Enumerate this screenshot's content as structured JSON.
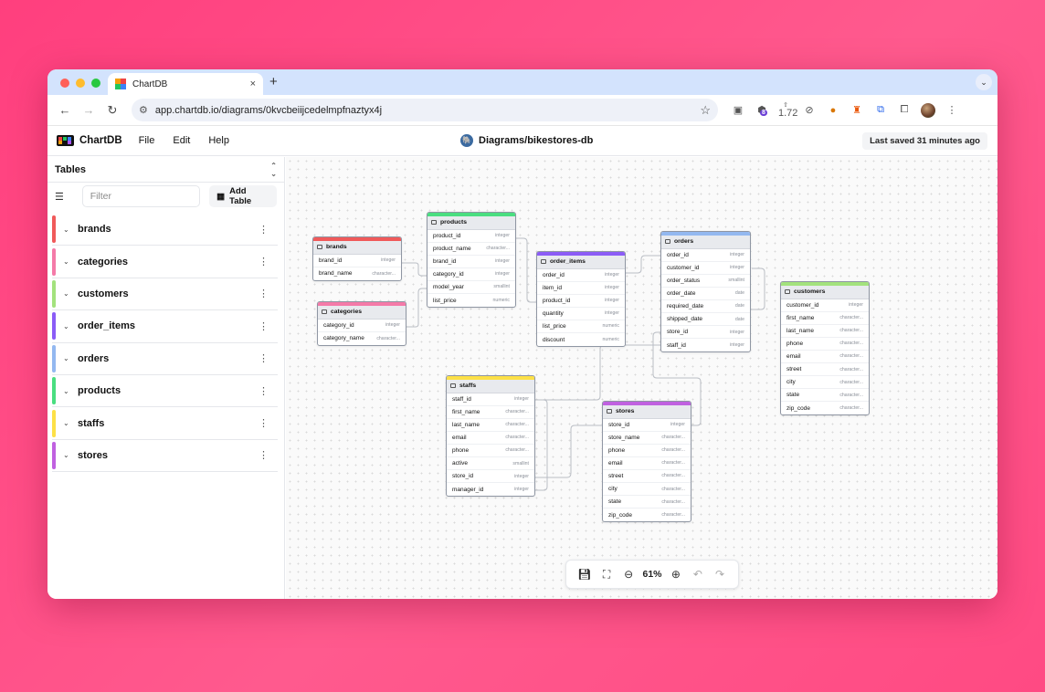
{
  "browser": {
    "tab_title": "ChartDB",
    "tab_close": "×",
    "new_tab": "+",
    "tab_menu": "⌄",
    "url": "app.chartdb.io/diagrams/0kvcbeiijcedelmpfnaztyx4j",
    "ext_badge_count": "8",
    "ext_value": "1.72"
  },
  "app": {
    "logo": "ChartDB",
    "menus": [
      "File",
      "Edit",
      "Help"
    ],
    "diagram_title": "Diagrams/bikestores-db",
    "last_saved": "Last saved 31 minutes ago"
  },
  "sidebar": {
    "title": "Tables",
    "filter_placeholder": "Filter",
    "add_table_label": "Add Table",
    "tables": [
      {
        "name": "brands",
        "color": "#f05a5a"
      },
      {
        "name": "categories",
        "color": "#f47aa8"
      },
      {
        "name": "customers",
        "color": "#a3e27d"
      },
      {
        "name": "order_items",
        "color": "#8b5cf6"
      },
      {
        "name": "orders",
        "color": "#93b8f0"
      },
      {
        "name": "products",
        "color": "#4ade80"
      },
      {
        "name": "staffs",
        "color": "#fde047"
      },
      {
        "name": "stores",
        "color": "#c061e0"
      }
    ]
  },
  "diagram": {
    "entities": {
      "brands": {
        "title": "brands",
        "color": "#f05a5a",
        "fields": [
          {
            "name": "brand_id",
            "type": "integer"
          },
          {
            "name": "brand_name",
            "type": "character..."
          }
        ]
      },
      "categories": {
        "title": "categories",
        "color": "#f47aa8",
        "fields": [
          {
            "name": "category_id",
            "type": "integer"
          },
          {
            "name": "category_name",
            "type": "character..."
          }
        ]
      },
      "products": {
        "title": "products",
        "color": "#4ade80",
        "fields": [
          {
            "name": "product_id",
            "type": "integer"
          },
          {
            "name": "product_name",
            "type": "character..."
          },
          {
            "name": "brand_id",
            "type": "integer"
          },
          {
            "name": "category_id",
            "type": "integer"
          },
          {
            "name": "model_year",
            "type": "smallint"
          },
          {
            "name": "list_price",
            "type": "numeric"
          }
        ]
      },
      "order_items": {
        "title": "order_items",
        "color": "#8b5cf6",
        "fields": [
          {
            "name": "order_id",
            "type": "integer"
          },
          {
            "name": "item_id",
            "type": "integer"
          },
          {
            "name": "product_id",
            "type": "integer"
          },
          {
            "name": "quantity",
            "type": "integer"
          },
          {
            "name": "list_price",
            "type": "numeric"
          },
          {
            "name": "discount",
            "type": "numeric"
          }
        ]
      },
      "orders": {
        "title": "orders",
        "color": "#93b8f0",
        "fields": [
          {
            "name": "order_id",
            "type": "integer"
          },
          {
            "name": "customer_id",
            "type": "integer"
          },
          {
            "name": "order_status",
            "type": "smallint"
          },
          {
            "name": "order_date",
            "type": "date"
          },
          {
            "name": "required_date",
            "type": "date"
          },
          {
            "name": "shipped_date",
            "type": "date"
          },
          {
            "name": "store_id",
            "type": "integer"
          },
          {
            "name": "staff_id",
            "type": "integer"
          }
        ]
      },
      "customers": {
        "title": "customers",
        "color": "#a3e27d",
        "fields": [
          {
            "name": "customer_id",
            "type": "integer"
          },
          {
            "name": "first_name",
            "type": "character..."
          },
          {
            "name": "last_name",
            "type": "character..."
          },
          {
            "name": "phone",
            "type": "character..."
          },
          {
            "name": "email",
            "type": "character..."
          },
          {
            "name": "street",
            "type": "character..."
          },
          {
            "name": "city",
            "type": "character..."
          },
          {
            "name": "state",
            "type": "character..."
          },
          {
            "name": "zip_code",
            "type": "character..."
          }
        ]
      },
      "staffs": {
        "title": "staffs",
        "color": "#fde047",
        "fields": [
          {
            "name": "staff_id",
            "type": "integer"
          },
          {
            "name": "first_name",
            "type": "character..."
          },
          {
            "name": "last_name",
            "type": "character..."
          },
          {
            "name": "email",
            "type": "character..."
          },
          {
            "name": "phone",
            "type": "character..."
          },
          {
            "name": "active",
            "type": "smallint"
          },
          {
            "name": "store_id",
            "type": "integer"
          },
          {
            "name": "manager_id",
            "type": "integer"
          }
        ]
      },
      "stores": {
        "title": "stores",
        "color": "#c061e0",
        "fields": [
          {
            "name": "store_id",
            "type": "integer"
          },
          {
            "name": "store_name",
            "type": "character..."
          },
          {
            "name": "phone",
            "type": "character..."
          },
          {
            "name": "email",
            "type": "character..."
          },
          {
            "name": "street",
            "type": "character..."
          },
          {
            "name": "city",
            "type": "character..."
          },
          {
            "name": "state",
            "type": "character..."
          },
          {
            "name": "zip_code",
            "type": "character..."
          }
        ]
      }
    }
  },
  "zoom": {
    "level": "61%"
  }
}
